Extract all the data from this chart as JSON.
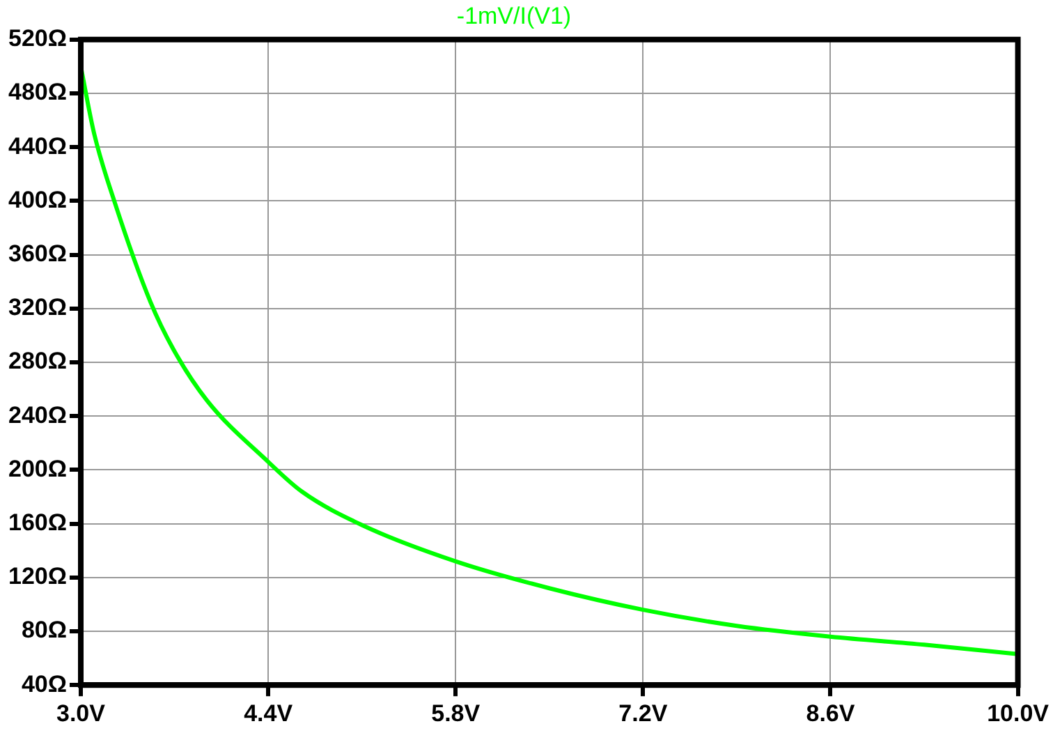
{
  "chart_data": {
    "type": "line",
    "title": "-1mV/I(V1)",
    "x": [
      3.0,
      3.1,
      3.25,
      3.52,
      3.69,
      3.94,
      4.4,
      4.65,
      5.1,
      5.8,
      6.5,
      7.2,
      7.9,
      8.6,
      9.3,
      10.0
    ],
    "series": [
      {
        "color": "#00ff00",
        "values": [
          500,
          450,
          400,
          325,
          290,
          252,
          206,
          184,
          159,
          132,
          112,
          96,
          84,
          76,
          70,
          63
        ]
      }
    ],
    "xlim": [
      3.0,
      10.0
    ],
    "xticks": [
      {
        "value": 3.0,
        "label": "3.0V"
      },
      {
        "value": 4.4,
        "label": "4.4V"
      },
      {
        "value": 5.8,
        "label": "5.8V"
      },
      {
        "value": 7.2,
        "label": "7.2V"
      },
      {
        "value": 8.6,
        "label": "8.6V"
      },
      {
        "value": 10.0,
        "label": "10.0V"
      }
    ],
    "ylim": [
      40,
      520
    ],
    "yticks": [
      {
        "value": 40,
        "label": "40Ω"
      },
      {
        "value": 80,
        "label": "80Ω"
      },
      {
        "value": 120,
        "label": "120Ω"
      },
      {
        "value": 160,
        "label": "160Ω"
      },
      {
        "value": 200,
        "label": "200Ω"
      },
      {
        "value": 240,
        "label": "240Ω"
      },
      {
        "value": 280,
        "label": "280Ω"
      },
      {
        "value": 320,
        "label": "320Ω"
      },
      {
        "value": 360,
        "label": "360Ω"
      },
      {
        "value": 400,
        "label": "400Ω"
      },
      {
        "value": 440,
        "label": "440Ω"
      },
      {
        "value": 480,
        "label": "480Ω"
      },
      {
        "value": 520,
        "label": "520Ω"
      }
    ],
    "grid": true,
    "legend": false,
    "marker": "none",
    "line_style": "solid"
  }
}
